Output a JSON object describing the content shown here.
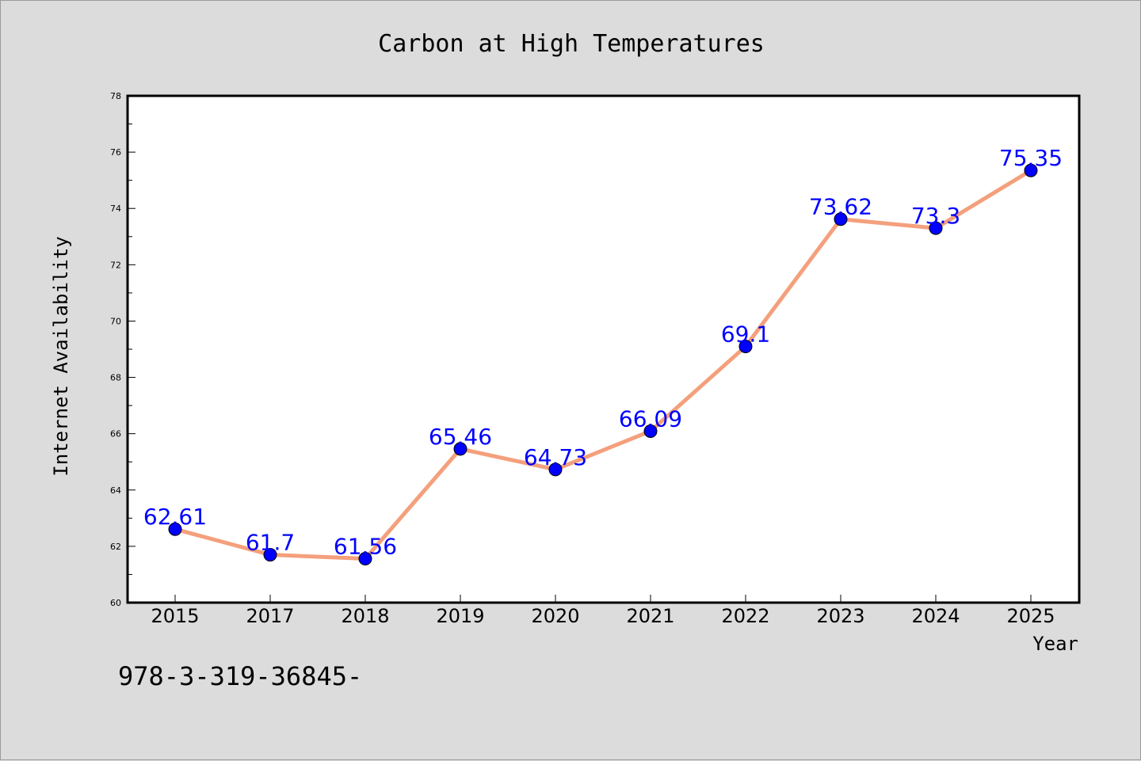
{
  "chart_data": {
    "type": "line",
    "title": "Carbon at High Temperatures",
    "xlabel": "Year",
    "ylabel": "Internet Availability",
    "categories": [
      "2015",
      "2017",
      "2018",
      "2019",
      "2020",
      "2021",
      "2022",
      "2023",
      "2024",
      "2025"
    ],
    "series": [
      {
        "values": [
          62.61,
          61.7,
          61.56,
          65.46,
          64.73,
          66.09,
          69.1,
          73.62,
          73.3,
          75.35
        ],
        "data_labels": [
          "62.61",
          "61.7",
          "61.56",
          "65.46",
          "64.73",
          "66.09",
          "69.1",
          "73.62",
          "73.3",
          "75.35"
        ],
        "line_color": "#f4a07c",
        "marker_color": "#0000ff",
        "label_color": "#0000ff"
      }
    ],
    "ylim": [
      60,
      78
    ],
    "yticks": [
      "60",
      "62",
      "64",
      "66",
      "68",
      "70",
      "72",
      "74",
      "76",
      "78"
    ],
    "grid": false,
    "legend": "none",
    "annotation": "978-3-319-36845-"
  }
}
